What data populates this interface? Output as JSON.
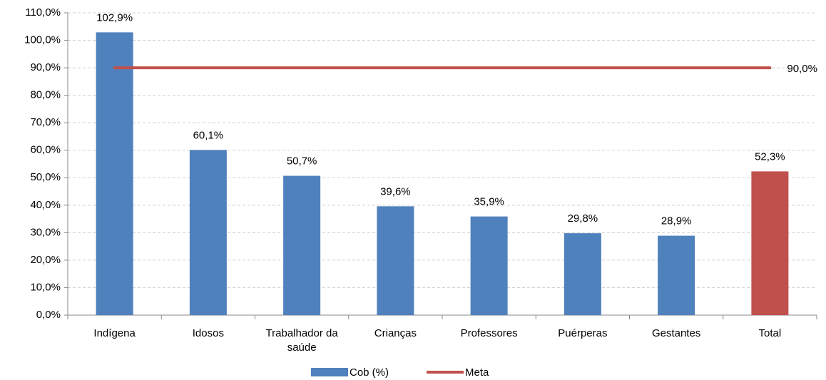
{
  "chart_data": {
    "type": "bar",
    "categories": [
      "Indígena",
      "Idosos",
      "Trabalhador da saúde",
      "Crianças",
      "Professores",
      "Puérperas",
      "Gestantes",
      "Total"
    ],
    "series": [
      {
        "name": "Cob (%)",
        "color": "#4f81bd",
        "colors": [
          "#4f81bd",
          "#4f81bd",
          "#4f81bd",
          "#4f81bd",
          "#4f81bd",
          "#4f81bd",
          "#4f81bd",
          "#c0504d"
        ],
        "values": [
          102.9,
          60.1,
          50.7,
          39.6,
          35.9,
          29.8,
          28.9,
          52.3
        ],
        "value_labels": [
          "102,9%",
          "60,1%",
          "50,7%",
          "39,6%",
          "35,9%",
          "29,8%",
          "28,9%",
          "52,3%"
        ]
      },
      {
        "name": "Meta",
        "type": "line",
        "color": "#c0504d",
        "values": [
          90,
          90,
          90,
          90,
          90,
          90,
          90,
          90
        ],
        "value_labels": [
          null,
          null,
          null,
          null,
          null,
          null,
          null,
          "90,0%"
        ]
      }
    ],
    "ylim": [
      0,
      110
    ],
    "yticks": [
      {
        "value": 0,
        "label": "0,0%"
      },
      {
        "value": 10,
        "label": "10,0%"
      },
      {
        "value": 20,
        "label": "20,0%"
      },
      {
        "value": 30,
        "label": "30,0%"
      },
      {
        "value": 40,
        "label": "40,0%"
      },
      {
        "value": 50,
        "label": "50,0%"
      },
      {
        "value": 60,
        "label": "60,0%"
      },
      {
        "value": 70,
        "label": "70,0%"
      },
      {
        "value": 80,
        "label": "80,0%"
      },
      {
        "value": 90,
        "label": "90,0%"
      },
      {
        "value": 100,
        "label": "100,0%"
      },
      {
        "value": 110,
        "label": "110,0%"
      }
    ],
    "grid": true,
    "legend": "bottom"
  }
}
